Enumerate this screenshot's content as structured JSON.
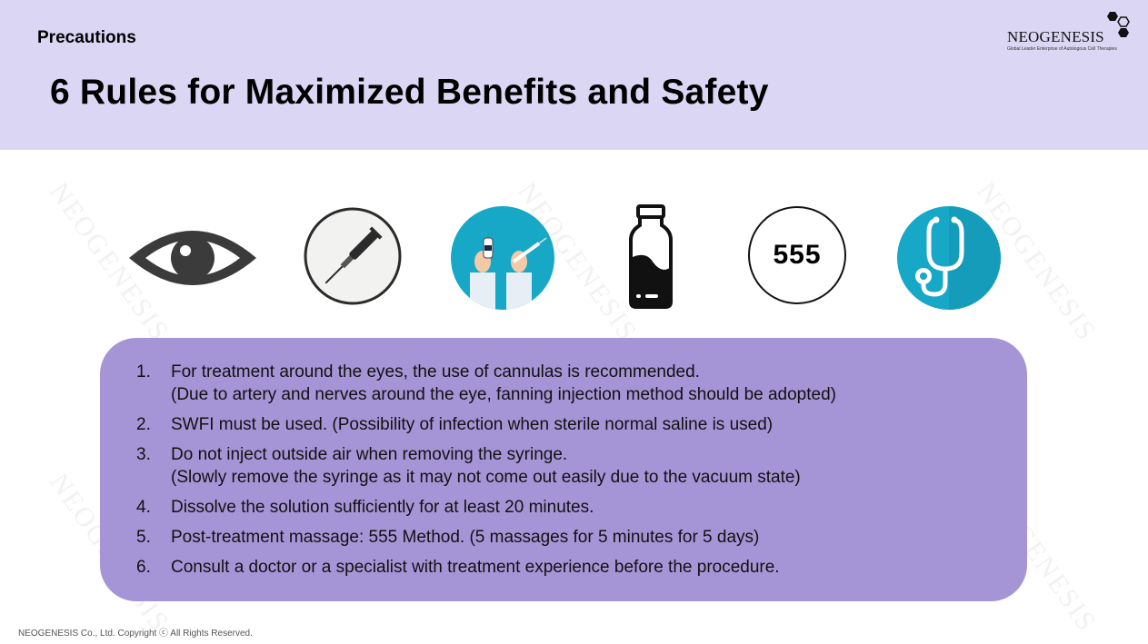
{
  "header": {
    "section_label": "Precautions",
    "title": "6 Rules for Maximized Benefits and Safety"
  },
  "logo": {
    "name": "NEOGENESIS",
    "tagline": "Global Leader Enterprise of Autologous Cell Therapies"
  },
  "icons": [
    {
      "icon": "eye-icon"
    },
    {
      "icon": "cannula-icon"
    },
    {
      "icon": "injection-hands-icon"
    },
    {
      "icon": "vial-icon"
    },
    {
      "icon": "555-badge-icon",
      "label": "555"
    },
    {
      "icon": "stethoscope-icon"
    }
  ],
  "rules": [
    {
      "number": "1.",
      "text": "For treatment around the eyes, the use of cannulas is recommended.",
      "sub": "(Due to artery and nerves around the eye, fanning injection method should be adopted)"
    },
    {
      "number": "2.",
      "text": "SWFI must be used. (Possibility of infection when sterile normal saline is used)",
      "sub": ""
    },
    {
      "number": "3.",
      "text": "Do not inject outside air when removing the syringe.",
      "sub": "(Slowly remove the syringe as it may not come out easily due to the vacuum state)"
    },
    {
      "number": "4.",
      "text": "Dissolve the solution sufficiently for at least 20 minutes.",
      "sub": ""
    },
    {
      "number": "5.",
      "text": "Post-treatment massage: 555 Method. (5 massages for 5 minutes for 5 days)",
      "sub": ""
    },
    {
      "number": "6.",
      "text": "Consult a doctor or a specialist with treatment experience before the procedure.",
      "sub": ""
    }
  ],
  "footer": {
    "copyright": "NEOGENESIS Co., Ltd. Copyright ⓒ All Rights Reserved."
  },
  "watermark": "NEOGENESIS",
  "colors": {
    "header_bg": "#dcd6f5",
    "rules_box": "#a695d6",
    "teal": "#17a8c7"
  }
}
